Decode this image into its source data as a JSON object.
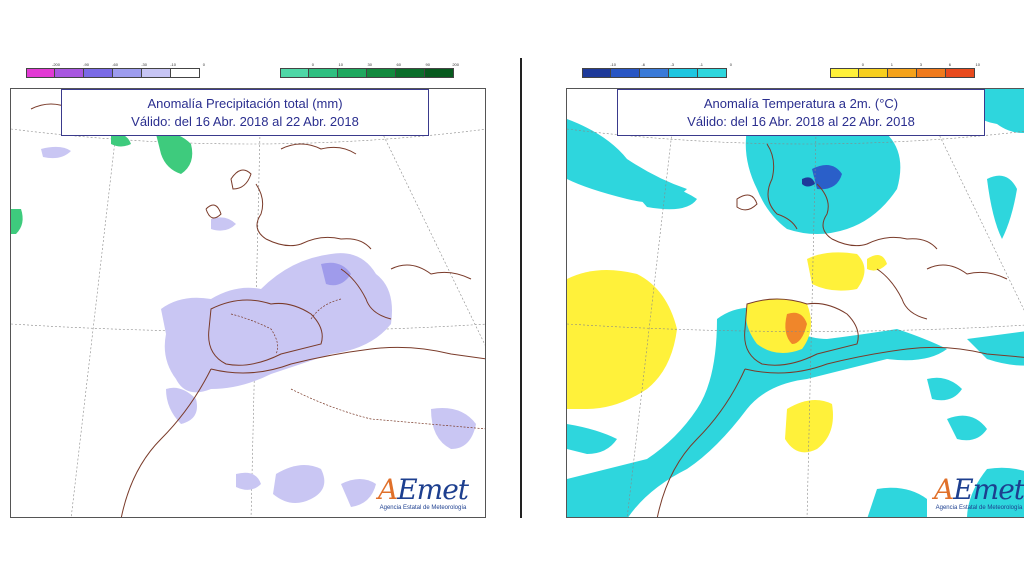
{
  "left_map": {
    "title_line1": "Anomalía Precipitación total (mm)",
    "title_line2": "Válido: del 16 Abr. 2018 al 22 Abr. 2018",
    "legend_negative": [
      {
        "label": "-200",
        "color": "#e23ad4"
      },
      {
        "label": "-90",
        "color": "#a857e0"
      },
      {
        "label": "-60",
        "color": "#7a6ae6"
      },
      {
        "label": "-30",
        "color": "#9d9cee"
      },
      {
        "label": "-10",
        "color": "#c7c5f4"
      },
      {
        "label": "0",
        "color": "#ffffff"
      }
    ],
    "legend_positive": [
      {
        "label": "0",
        "color": "#4fd7a6"
      },
      {
        "label": "10",
        "color": "#2fbf80"
      },
      {
        "label": "30",
        "color": "#1fa85e"
      },
      {
        "label": "60",
        "color": "#138a3e"
      },
      {
        "label": "90",
        "color": "#0b6e2a"
      },
      {
        "label": "200",
        "color": "#075a1e"
      }
    ],
    "colors": {
      "negative_anomaly": "#c9c6f3",
      "negative_strong": "#9f9beb",
      "positive_anomaly": "#3ecb7d",
      "coast": "#7a3b2a",
      "border": "#7a3b2a"
    }
  },
  "right_map": {
    "title_line1": "Anomalía Temperatura a 2m. (°C)",
    "title_line2": "Válido: del 16 Abr. 2018 al 22 Abr. 2018",
    "legend_negative": [
      {
        "label": "-10",
        "color": "#1e3a9a"
      },
      {
        "label": "-6",
        "color": "#2956c4"
      },
      {
        "label": "-3",
        "color": "#3a7ad8"
      },
      {
        "label": "-1",
        "color": "#1fc6e0"
      },
      {
        "label": "0",
        "color": "#2ed6dd"
      }
    ],
    "legend_positive": [
      {
        "label": "0",
        "color": "#fff13a"
      },
      {
        "label": "1",
        "color": "#f7cf1e"
      },
      {
        "label": "3",
        "color": "#f5a21a"
      },
      {
        "label": "6",
        "color": "#f07a1c"
      },
      {
        "label": "10",
        "color": "#e84a1d"
      }
    ],
    "colors": {
      "cool_anomaly": "#2ed6dd",
      "cold_anomaly": "#2a5fc9",
      "warm_anomaly": "#fff13a",
      "hot_anomaly": "#f0862a",
      "coast": "#7a3b2a"
    }
  },
  "logo": {
    "name_a": "A",
    "name_rest": "Emet",
    "subtitle": "Agencia Estatal de Meteorología"
  }
}
